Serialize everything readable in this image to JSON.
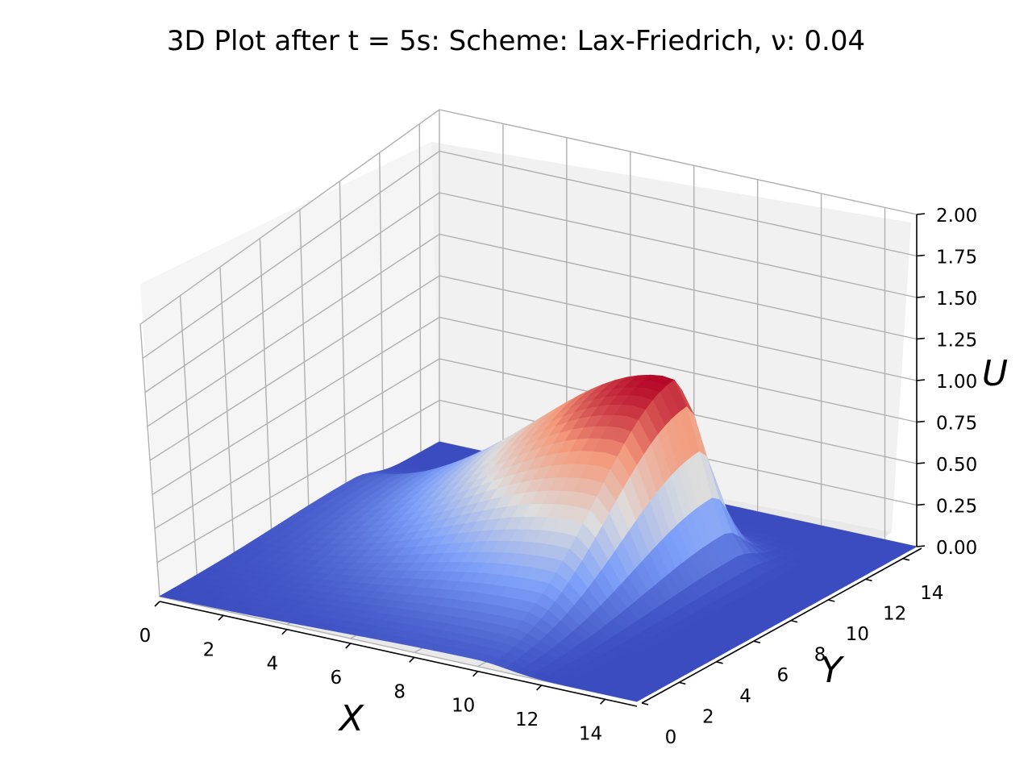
{
  "chart_data": {
    "type": "surface",
    "title": "3D Plot after t = 5s: Scheme: Lax-Friedrich, ν: 0.04",
    "xlabel": "X",
    "ylabel": "Y",
    "zlabel": "U",
    "xlim": [
      0,
      15
    ],
    "ylim": [
      0,
      15
    ],
    "zlim": [
      0,
      2
    ],
    "x_ticks": [
      "0",
      "2",
      "4",
      "6",
      "8",
      "10",
      "12",
      "14"
    ],
    "y_ticks": [
      "0",
      "2",
      "4",
      "6",
      "8",
      "10",
      "12",
      "14"
    ],
    "z_ticks": [
      "0.00",
      "0.25",
      "0.50",
      "0.75",
      "1.00",
      "1.25",
      "1.50",
      "1.75",
      "2.00"
    ],
    "colormap": "coolwarm",
    "background_value": 0.0,
    "peak": {
      "x": 10,
      "y": 10.5,
      "u": 1.15
    },
    "grid": true
  }
}
